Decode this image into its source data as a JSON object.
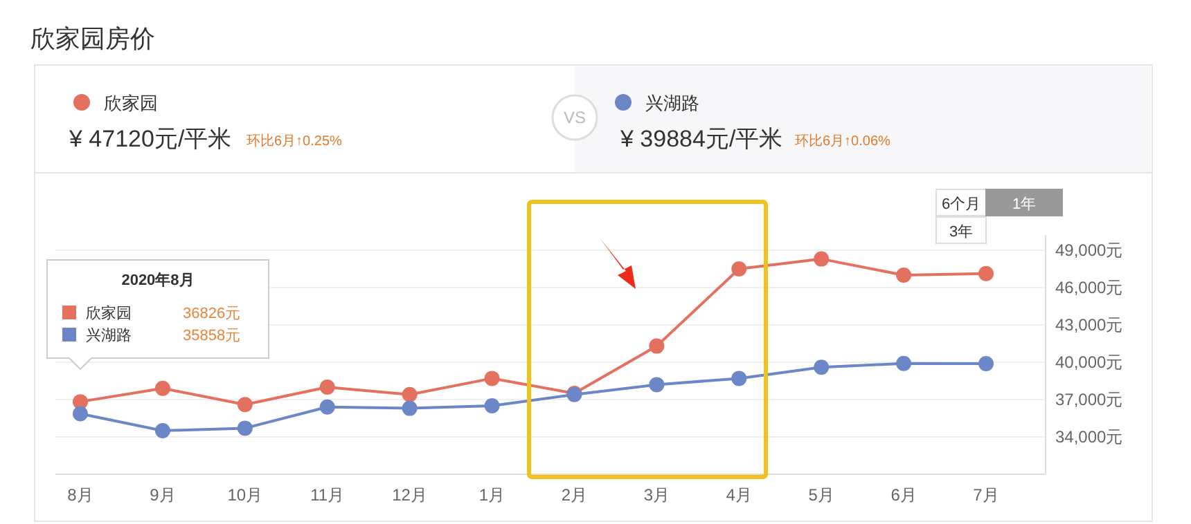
{
  "chart_data": {
    "type": "line",
    "title": "欣家园房价",
    "categories": [
      "8月",
      "9月",
      "10月",
      "11月",
      "12月",
      "1月",
      "2月",
      "3月",
      "4月",
      "5月",
      "6月",
      "7月"
    ],
    "series": [
      {
        "name": "欣家园",
        "color": "#e4705f",
        "values": [
          36826,
          37900,
          36600,
          38000,
          37400,
          38700,
          37500,
          41300,
          47500,
          48300,
          47000,
          47120
        ]
      },
      {
        "name": "兴湖路",
        "color": "#6b87c7",
        "values": [
          35858,
          34500,
          34700,
          36400,
          36300,
          36500,
          37400,
          38200,
          38700,
          39600,
          39900,
          39884
        ]
      }
    ],
    "ylim": [
      31000,
      49000
    ],
    "yticks": [
      {
        "value": 34000,
        "label": "34,000元"
      },
      {
        "value": 37000,
        "label": "37,000元"
      },
      {
        "value": 40000,
        "label": "40,000元"
      },
      {
        "value": 43000,
        "label": "43,000元"
      },
      {
        "value": 46000,
        "label": "46,000元"
      },
      {
        "value": 49000,
        "label": "49,000元"
      }
    ],
    "grid": "y",
    "legend": "top",
    "marker": "circle",
    "line_style": "solid",
    "annotations": [
      "¥ 47120元/平米",
      "环比6月↑0.25%",
      "VS",
      "¥ 39884元/平米",
      "环比6月↑0.06%",
      "6个月",
      "1年",
      "3年",
      "2020年8月",
      "36826元",
      "35858元"
    ]
  }
}
